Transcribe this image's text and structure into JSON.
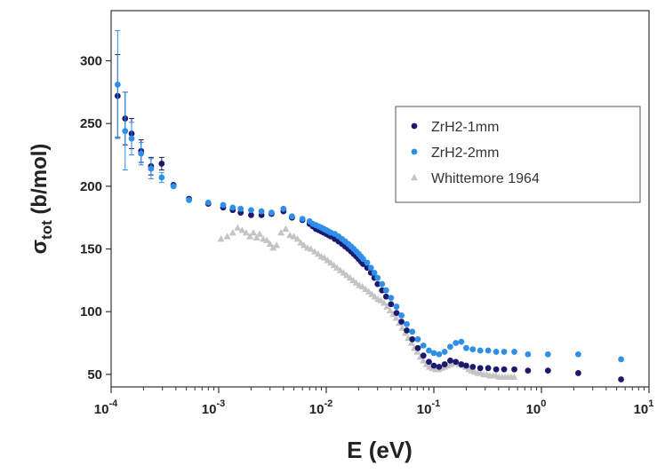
{
  "chart_data": {
    "type": "scatter",
    "xscale": "log",
    "xlim": [
      0.0001,
      10
    ],
    "ylim": [
      40,
      340
    ],
    "xlabel": "E (eV)",
    "ylabel_main": "σ",
    "ylabel_sub": "tot",
    "ylabel_unit": " (b/mol)",
    "x_ticks": [
      {
        "value": 0.0001,
        "base": "10",
        "exp": "-4"
      },
      {
        "value": 0.001,
        "base": "10",
        "exp": "-3"
      },
      {
        "value": 0.01,
        "base": "10",
        "exp": "-2"
      },
      {
        "value": 0.1,
        "base": "10",
        "exp": "-1"
      },
      {
        "value": 1,
        "base": "10",
        "exp": "0"
      },
      {
        "value": 10,
        "base": "10",
        "exp": "1"
      }
    ],
    "y_ticks": [
      50,
      100,
      150,
      200,
      250,
      300
    ],
    "legend_position": "top-right",
    "colors": {
      "ZrH2-1mm": "#1a1a6e",
      "ZrH2-2mm": "#2f8fe8",
      "Whittemore 1964": "#c4c4c4"
    },
    "series": [
      {
        "name": "ZrH2-1mm",
        "marker": "circle",
        "points": [
          [
            0.000115,
            272,
            33
          ],
          [
            0.000135,
            254,
            21
          ],
          [
            0.000155,
            242,
            12
          ],
          [
            0.00019,
            228,
            9
          ],
          [
            0.000235,
            216,
            7
          ],
          [
            0.000295,
            218,
            5
          ],
          [
            0.00038,
            201,
            0
          ],
          [
            0.00053,
            190,
            0
          ],
          [
            0.0008,
            186,
            0
          ],
          [
            0.0011,
            183,
            0
          ],
          [
            0.00135,
            181,
            0
          ],
          [
            0.0016,
            179,
            0
          ],
          [
            0.002,
            177,
            0
          ],
          [
            0.0025,
            177,
            0
          ],
          [
            0.0031,
            178,
            0
          ],
          [
            0.004,
            180,
            0
          ],
          [
            0.0048,
            175,
            0
          ],
          [
            0.006,
            173,
            0
          ],
          [
            0.007,
            170,
            0
          ],
          [
            0.0075,
            168,
            0
          ],
          [
            0.008,
            166,
            0
          ],
          [
            0.0085,
            165,
            0
          ],
          [
            0.009,
            164,
            0
          ],
          [
            0.0095,
            163,
            0
          ],
          [
            0.01,
            162,
            0
          ],
          [
            0.0105,
            161,
            0
          ],
          [
            0.011,
            160,
            0
          ],
          [
            0.012,
            158,
            0
          ],
          [
            0.013,
            156,
            0
          ],
          [
            0.014,
            154,
            0
          ],
          [
            0.015,
            152,
            0
          ],
          [
            0.016,
            150,
            0
          ],
          [
            0.017,
            148,
            0
          ],
          [
            0.018,
            146,
            0
          ],
          [
            0.019,
            144,
            0
          ],
          [
            0.02,
            142,
            0
          ],
          [
            0.021,
            140,
            0
          ],
          [
            0.022,
            138,
            0
          ],
          [
            0.024,
            135,
            0
          ],
          [
            0.026,
            131,
            0
          ],
          [
            0.028,
            127,
            0
          ],
          [
            0.03,
            122,
            0
          ],
          [
            0.033,
            117,
            0
          ],
          [
            0.036,
            112,
            0
          ],
          [
            0.04,
            106,
            0
          ],
          [
            0.045,
            99,
            0
          ],
          [
            0.05,
            92,
            0
          ],
          [
            0.056,
            85,
            0
          ],
          [
            0.063,
            78,
            0
          ],
          [
            0.071,
            71,
            0
          ],
          [
            0.08,
            65,
            0
          ],
          [
            0.09,
            60,
            0
          ],
          [
            0.1,
            57,
            0
          ],
          [
            0.112,
            56,
            0
          ],
          [
            0.126,
            58,
            0
          ],
          [
            0.142,
            61,
            0
          ],
          [
            0.16,
            60,
            0
          ],
          [
            0.18,
            58,
            0
          ],
          [
            0.2,
            57,
            0
          ],
          [
            0.23,
            56,
            0
          ],
          [
            0.27,
            55,
            0
          ],
          [
            0.32,
            55,
            0
          ],
          [
            0.38,
            54,
            0
          ],
          [
            0.45,
            54,
            0
          ],
          [
            0.56,
            54,
            0
          ],
          [
            0.75,
            53,
            0
          ],
          [
            1.15,
            53,
            0
          ],
          [
            2.2,
            51,
            0
          ],
          [
            5.5,
            46,
            0
          ]
        ]
      },
      {
        "name": "ZrH2-2mm",
        "marker": "circle",
        "points": [
          [
            0.000115,
            281,
            43
          ],
          [
            0.000135,
            244,
            31
          ],
          [
            0.000155,
            238,
            13
          ],
          [
            0.00019,
            226,
            9
          ],
          [
            0.000235,
            214,
            8
          ],
          [
            0.000295,
            207,
            4
          ],
          [
            0.00038,
            200,
            0
          ],
          [
            0.00053,
            189,
            0
          ],
          [
            0.0008,
            187,
            0
          ],
          [
            0.0011,
            185,
            0
          ],
          [
            0.00135,
            183,
            0
          ],
          [
            0.0016,
            182,
            0
          ],
          [
            0.002,
            181,
            0
          ],
          [
            0.0025,
            180,
            0
          ],
          [
            0.0031,
            179,
            0
          ],
          [
            0.004,
            182,
            0
          ],
          [
            0.0048,
            176,
            0
          ],
          [
            0.006,
            174,
            0
          ],
          [
            0.007,
            172,
            0
          ],
          [
            0.0075,
            170,
            0
          ],
          [
            0.008,
            169,
            0
          ],
          [
            0.0085,
            168,
            0
          ],
          [
            0.009,
            167,
            0
          ],
          [
            0.0095,
            166,
            0
          ],
          [
            0.01,
            165,
            0
          ],
          [
            0.0105,
            164,
            0
          ],
          [
            0.011,
            163,
            0
          ],
          [
            0.012,
            162,
            0
          ],
          [
            0.013,
            160,
            0
          ],
          [
            0.014,
            158,
            0
          ],
          [
            0.015,
            156,
            0
          ],
          [
            0.016,
            154,
            0
          ],
          [
            0.017,
            152,
            0
          ],
          [
            0.018,
            150,
            0
          ],
          [
            0.019,
            148,
            0
          ],
          [
            0.02,
            146,
            0
          ],
          [
            0.021,
            144,
            0
          ],
          [
            0.022,
            142,
            0
          ],
          [
            0.024,
            139,
            0
          ],
          [
            0.026,
            135,
            0
          ],
          [
            0.028,
            131,
            0
          ],
          [
            0.03,
            127,
            0
          ],
          [
            0.033,
            122,
            0
          ],
          [
            0.036,
            117,
            0
          ],
          [
            0.04,
            111,
            0
          ],
          [
            0.045,
            104,
            0
          ],
          [
            0.05,
            97,
            0
          ],
          [
            0.056,
            90,
            0
          ],
          [
            0.063,
            84,
            0
          ],
          [
            0.071,
            78,
            0
          ],
          [
            0.08,
            73,
            0
          ],
          [
            0.09,
            69,
            0
          ],
          [
            0.1,
            67,
            0
          ],
          [
            0.112,
            66,
            0
          ],
          [
            0.126,
            68,
            0
          ],
          [
            0.142,
            72,
            0
          ],
          [
            0.16,
            75,
            0
          ],
          [
            0.18,
            76,
            0
          ],
          [
            0.2,
            71,
            0
          ],
          [
            0.23,
            70,
            0
          ],
          [
            0.27,
            69,
            0
          ],
          [
            0.32,
            69,
            0
          ],
          [
            0.38,
            68,
            0
          ],
          [
            0.45,
            68,
            0
          ],
          [
            0.56,
            68,
            0
          ],
          [
            0.75,
            66,
            0
          ],
          [
            1.15,
            66,
            0
          ],
          [
            2.2,
            66,
            0
          ],
          [
            5.5,
            62,
            0
          ]
        ]
      },
      {
        "name": "Whittemore 1964",
        "marker": "triangle",
        "points": [
          [
            0.00105,
            158,
            0
          ],
          [
            0.0012,
            160,
            0
          ],
          [
            0.00135,
            163,
            0
          ],
          [
            0.0015,
            167,
            0
          ],
          [
            0.00165,
            165,
            0
          ],
          [
            0.0018,
            163,
            0
          ],
          [
            0.00195,
            160,
            0
          ],
          [
            0.0021,
            163,
            0
          ],
          [
            0.00225,
            159,
            0
          ],
          [
            0.0024,
            162,
            0
          ],
          [
            0.0026,
            158,
            0
          ],
          [
            0.0028,
            157,
            0
          ],
          [
            0.003,
            154,
            0
          ],
          [
            0.0032,
            151,
            0
          ],
          [
            0.00345,
            153,
            0
          ],
          [
            0.0038,
            163,
            0
          ],
          [
            0.0042,
            166,
            0
          ],
          [
            0.0046,
            161,
            0
          ],
          [
            0.005,
            160,
            0
          ],
          [
            0.0054,
            158,
            0
          ],
          [
            0.0058,
            155,
            0
          ],
          [
            0.0062,
            153,
            0
          ],
          [
            0.0067,
            151,
            0
          ],
          [
            0.0072,
            150,
            0
          ],
          [
            0.0078,
            148,
            0
          ],
          [
            0.0084,
            146,
            0
          ],
          [
            0.009,
            144,
            0
          ],
          [
            0.0096,
            143,
            0
          ],
          [
            0.0103,
            141,
            0
          ],
          [
            0.011,
            139,
            0
          ],
          [
            0.0118,
            137,
            0
          ],
          [
            0.0126,
            135,
            0
          ],
          [
            0.0135,
            133,
            0
          ],
          [
            0.0145,
            131,
            0
          ],
          [
            0.0155,
            129,
            0
          ],
          [
            0.0166,
            127,
            0
          ],
          [
            0.0178,
            125,
            0
          ],
          [
            0.019,
            123,
            0
          ],
          [
            0.0203,
            121,
            0
          ],
          [
            0.0217,
            120,
            0
          ],
          [
            0.0232,
            118,
            0
          ],
          [
            0.0248,
            116,
            0
          ],
          [
            0.0265,
            114,
            0
          ],
          [
            0.0283,
            112,
            0
          ],
          [
            0.0302,
            110,
            0
          ],
          [
            0.0322,
            109,
            0
          ],
          [
            0.0344,
            107,
            0
          ],
          [
            0.0367,
            104,
            0
          ],
          [
            0.0392,
            101,
            0
          ],
          [
            0.0418,
            98,
            0
          ],
          [
            0.0446,
            95,
            0
          ],
          [
            0.0476,
            91,
            0
          ],
          [
            0.0508,
            87,
            0
          ],
          [
            0.0542,
            83,
            0
          ],
          [
            0.0578,
            79,
            0
          ],
          [
            0.0617,
            75,
            0
          ],
          [
            0.0658,
            71,
            0
          ],
          [
            0.0702,
            68,
            0
          ],
          [
            0.0749,
            64,
            0
          ],
          [
            0.0799,
            61,
            0
          ],
          [
            0.0852,
            58,
            0
          ],
          [
            0.0909,
            56,
            0
          ],
          [
            0.097,
            55,
            0
          ],
          [
            0.1035,
            54,
            0
          ],
          [
            0.1104,
            54,
            0
          ],
          [
            0.1178,
            55,
            0
          ],
          [
            0.1257,
            56,
            0
          ],
          [
            0.1341,
            57,
            0
          ],
          [
            0.1431,
            58,
            0
          ],
          [
            0.1527,
            59,
            0
          ],
          [
            0.1629,
            59,
            0
          ],
          [
            0.1738,
            58,
            0
          ],
          [
            0.1854,
            57,
            0
          ],
          [
            0.1978,
            56,
            0
          ],
          [
            0.211,
            54,
            0
          ],
          [
            0.2251,
            53,
            0
          ],
          [
            0.2402,
            52,
            0
          ],
          [
            0.2563,
            51,
            0
          ],
          [
            0.2734,
            51,
            0
          ],
          [
            0.2917,
            50,
            0
          ],
          [
            0.3112,
            50,
            0
          ],
          [
            0.332,
            49,
            0
          ],
          [
            0.3542,
            49,
            0
          ],
          [
            0.3779,
            49,
            0
          ],
          [
            0.4032,
            48,
            0
          ],
          [
            0.4302,
            48,
            0
          ],
          [
            0.459,
            48,
            0
          ],
          [
            0.4897,
            48,
            0
          ],
          [
            0.5225,
            48,
            0
          ],
          [
            0.5575,
            48,
            0
          ]
        ]
      }
    ]
  }
}
